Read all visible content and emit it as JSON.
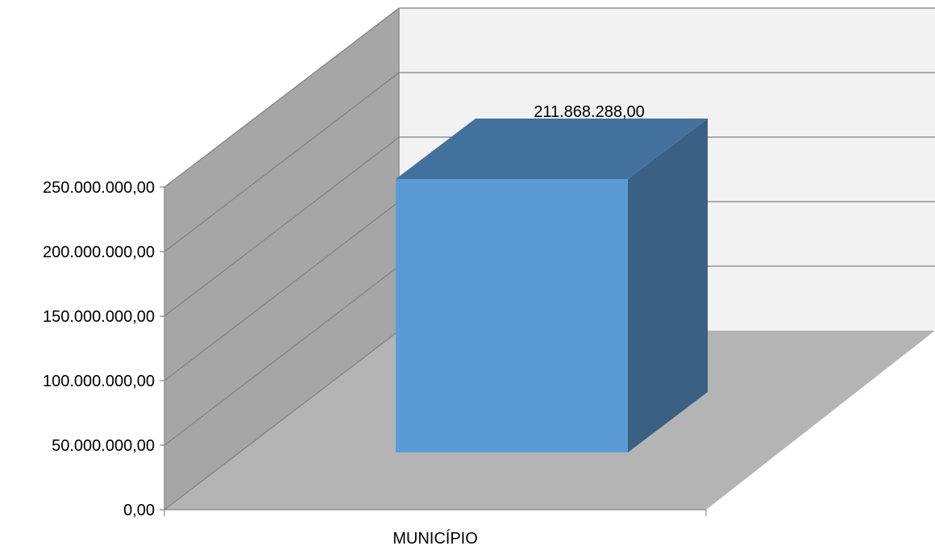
{
  "chart_data": {
    "type": "bar",
    "style": "3d-column",
    "categories": [
      "MUNICÍPIO"
    ],
    "values": [
      211868288
    ],
    "value_labels": [
      "211.868.288,00"
    ],
    "yticks": [
      0,
      50000000,
      100000000,
      150000000,
      200000000,
      250000000
    ],
    "ytick_labels": [
      "0,00",
      "50.000.000,00",
      "100.000.000,00",
      "150.000.000,00",
      "200.000.000,00",
      "250.000.000,00"
    ],
    "ylim": [
      0,
      250000000
    ],
    "grid": true,
    "legend": "none",
    "colors": {
      "bar_front": "#5b9bd5",
      "bar_top": "#41719c",
      "bar_side": "#3a6084",
      "back_wall": "#f2f2f2",
      "side_wall": "#a6a6a6",
      "floor": "#b4b4b4",
      "gridline": "#808080"
    }
  }
}
